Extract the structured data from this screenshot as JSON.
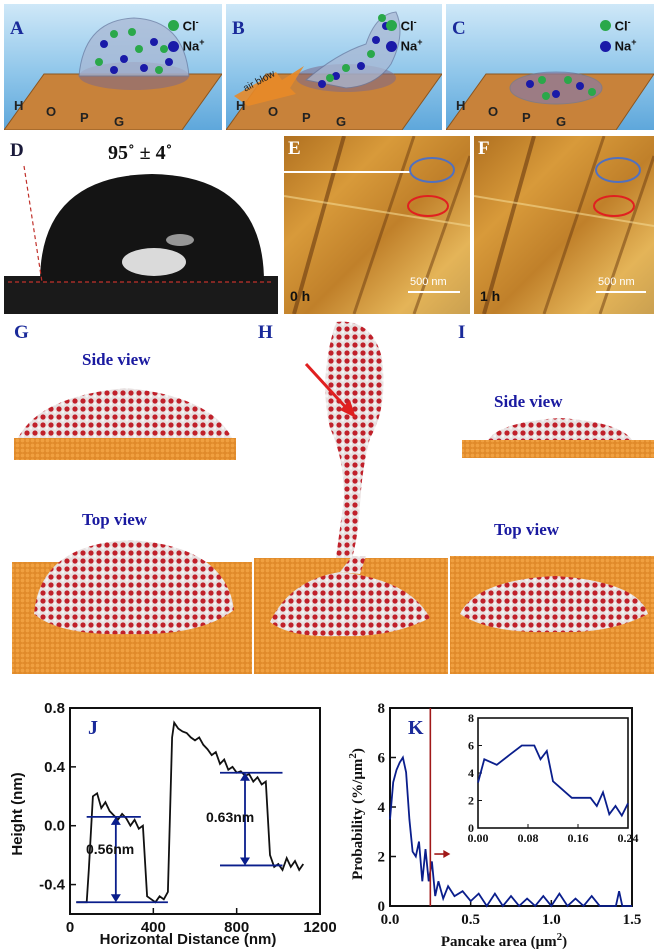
{
  "schematic": {
    "panels": [
      {
        "label": "A",
        "substrate": [
          "H",
          "O",
          "P",
          "G"
        ]
      },
      {
        "label": "B",
        "substrate": [
          "H",
          "O",
          "P",
          "G"
        ],
        "arrow_text": "air blow"
      },
      {
        "label": "C",
        "substrate": [
          "H",
          "O",
          "P",
          "G"
        ]
      }
    ],
    "legend": {
      "chloride": "Cl",
      "chloride_sup": "-",
      "sodium": "Na",
      "sodium_sup": "+"
    }
  },
  "contact_angle": {
    "label": "D",
    "value": "95˚ ± 4˚"
  },
  "afm": [
    {
      "label": "E",
      "time": "0 h",
      "scale": "500  nm"
    },
    {
      "label": "F",
      "time": "1 h",
      "scale": "500  nm"
    }
  ],
  "simulation": {
    "labels": {
      "g": "G",
      "h": "H",
      "i": "I"
    },
    "side_view": "Side view",
    "top_view": "Top view"
  },
  "colors": {
    "label_blue": "#1a2a9a",
    "hopg": "#c8823a",
    "water_red": "#c0202a",
    "line_navy": "#0a1e8c",
    "marker_red": "#a01818"
  },
  "chart_data": [
    {
      "type": "line",
      "label": "J",
      "xlabel": "Horizontal Distance (nm)",
      "ylabel": "Height (nm)",
      "xlim": [
        0,
        1200
      ],
      "ylim": [
        -0.6,
        0.8
      ],
      "xticks": [
        "0",
        "400",
        "800",
        "1200"
      ],
      "yticks": [
        "-0.4",
        "0.0",
        "0.4",
        "0.8"
      ],
      "series": [
        {
          "x": [
            30,
            80,
            90,
            110,
            130,
            150,
            170,
            190,
            210,
            230,
            250,
            270,
            290,
            310,
            330,
            350,
            370,
            390,
            410,
            430,
            450,
            470,
            490,
            500,
            520,
            540,
            560,
            580,
            600,
            620,
            640,
            660,
            680,
            700,
            720,
            740,
            760,
            780,
            800,
            820,
            840,
            860,
            880,
            900,
            920,
            940,
            960,
            980,
            1000,
            1020,
            1040,
            1060,
            1080,
            1100,
            1120
          ],
          "y": [
            -0.52,
            -0.52,
            -0.3,
            0.2,
            0.22,
            0.12,
            0.16,
            0.1,
            0.07,
            0.04,
            0.08,
            0.05,
            0.0,
            0.04,
            -0.02,
            0.0,
            -0.48,
            -0.5,
            -0.52,
            -0.48,
            -0.5,
            -0.45,
            0.6,
            0.7,
            0.66,
            0.64,
            0.63,
            0.6,
            0.58,
            0.6,
            0.55,
            0.52,
            0.48,
            0.5,
            0.42,
            0.45,
            0.38,
            0.4,
            0.36,
            0.37,
            0.34,
            0.35,
            0.3,
            0.33,
            0.28,
            0.3,
            -0.2,
            -0.28,
            -0.26,
            -0.3,
            -0.22,
            -0.28,
            -0.24,
            -0.3,
            -0.26
          ]
        }
      ],
      "annotations": [
        "0.56nm",
        "0.63nm"
      ]
    },
    {
      "type": "line",
      "label": "K",
      "xlabel": "Pancake area (μm",
      "xlabel_sup": "2",
      "ylabel": "Probability (%/μm",
      "ylabel_sup": "2",
      "xlim": [
        0,
        1.5
      ],
      "ylim": [
        0,
        8
      ],
      "xticks": [
        "0.0",
        "0.5",
        "1.0",
        "1.5"
      ],
      "yticks": [
        "0",
        "2",
        "4",
        "6",
        "8"
      ],
      "marker_x": 0.25,
      "series": [
        {
          "x": [
            0.0,
            0.02,
            0.04,
            0.06,
            0.08,
            0.1,
            0.12,
            0.14,
            0.16,
            0.18,
            0.2,
            0.22,
            0.24,
            0.26,
            0.28,
            0.3,
            0.33,
            0.36,
            0.4,
            0.45,
            0.5,
            0.55,
            0.6,
            0.65,
            0.7,
            0.75,
            0.8,
            0.85,
            0.9,
            0.95,
            1.0,
            1.05,
            1.1,
            1.15,
            1.2,
            1.25,
            1.3,
            1.35,
            1.4,
            1.42,
            1.44,
            1.46,
            1.5
          ],
          "y": [
            3.5,
            5.0,
            5.5,
            5.8,
            6.0,
            5.4,
            3.5,
            2.2,
            2.0,
            2.6,
            1.0,
            2.3,
            1.0,
            1.8,
            0.4,
            1.0,
            0.3,
            0.8,
            0.4,
            0.6,
            0.2,
            0.5,
            0.0,
            0.5,
            0.0,
            0.4,
            0.0,
            0.3,
            0.0,
            0.4,
            0.0,
            0.5,
            0.0,
            0.3,
            0.0,
            0.4,
            0.0,
            0.0,
            0.0,
            0.6,
            0.0,
            0.0,
            0.0
          ]
        }
      ],
      "inset": {
        "xlim": [
          0.0,
          0.24
        ],
        "ylim": [
          0,
          8
        ],
        "xticks": [
          "0.00",
          "0.08",
          "0.16",
          "0.24"
        ],
        "yticks": [
          "0",
          "2",
          "4",
          "6",
          "8"
        ],
        "x": [
          0.0,
          0.01,
          0.03,
          0.05,
          0.07,
          0.09,
          0.1,
          0.11,
          0.12,
          0.13,
          0.14,
          0.15,
          0.16,
          0.17,
          0.18,
          0.19,
          0.2,
          0.21,
          0.22,
          0.23,
          0.24
        ],
        "y": [
          3.3,
          5.0,
          4.6,
          5.3,
          6.0,
          6.0,
          5.0,
          5.6,
          3.4,
          3.0,
          2.6,
          2.2,
          2.2,
          2.2,
          2.2,
          1.6,
          2.6,
          1.0,
          1.6,
          0.9,
          1.8
        ]
      }
    }
  ]
}
